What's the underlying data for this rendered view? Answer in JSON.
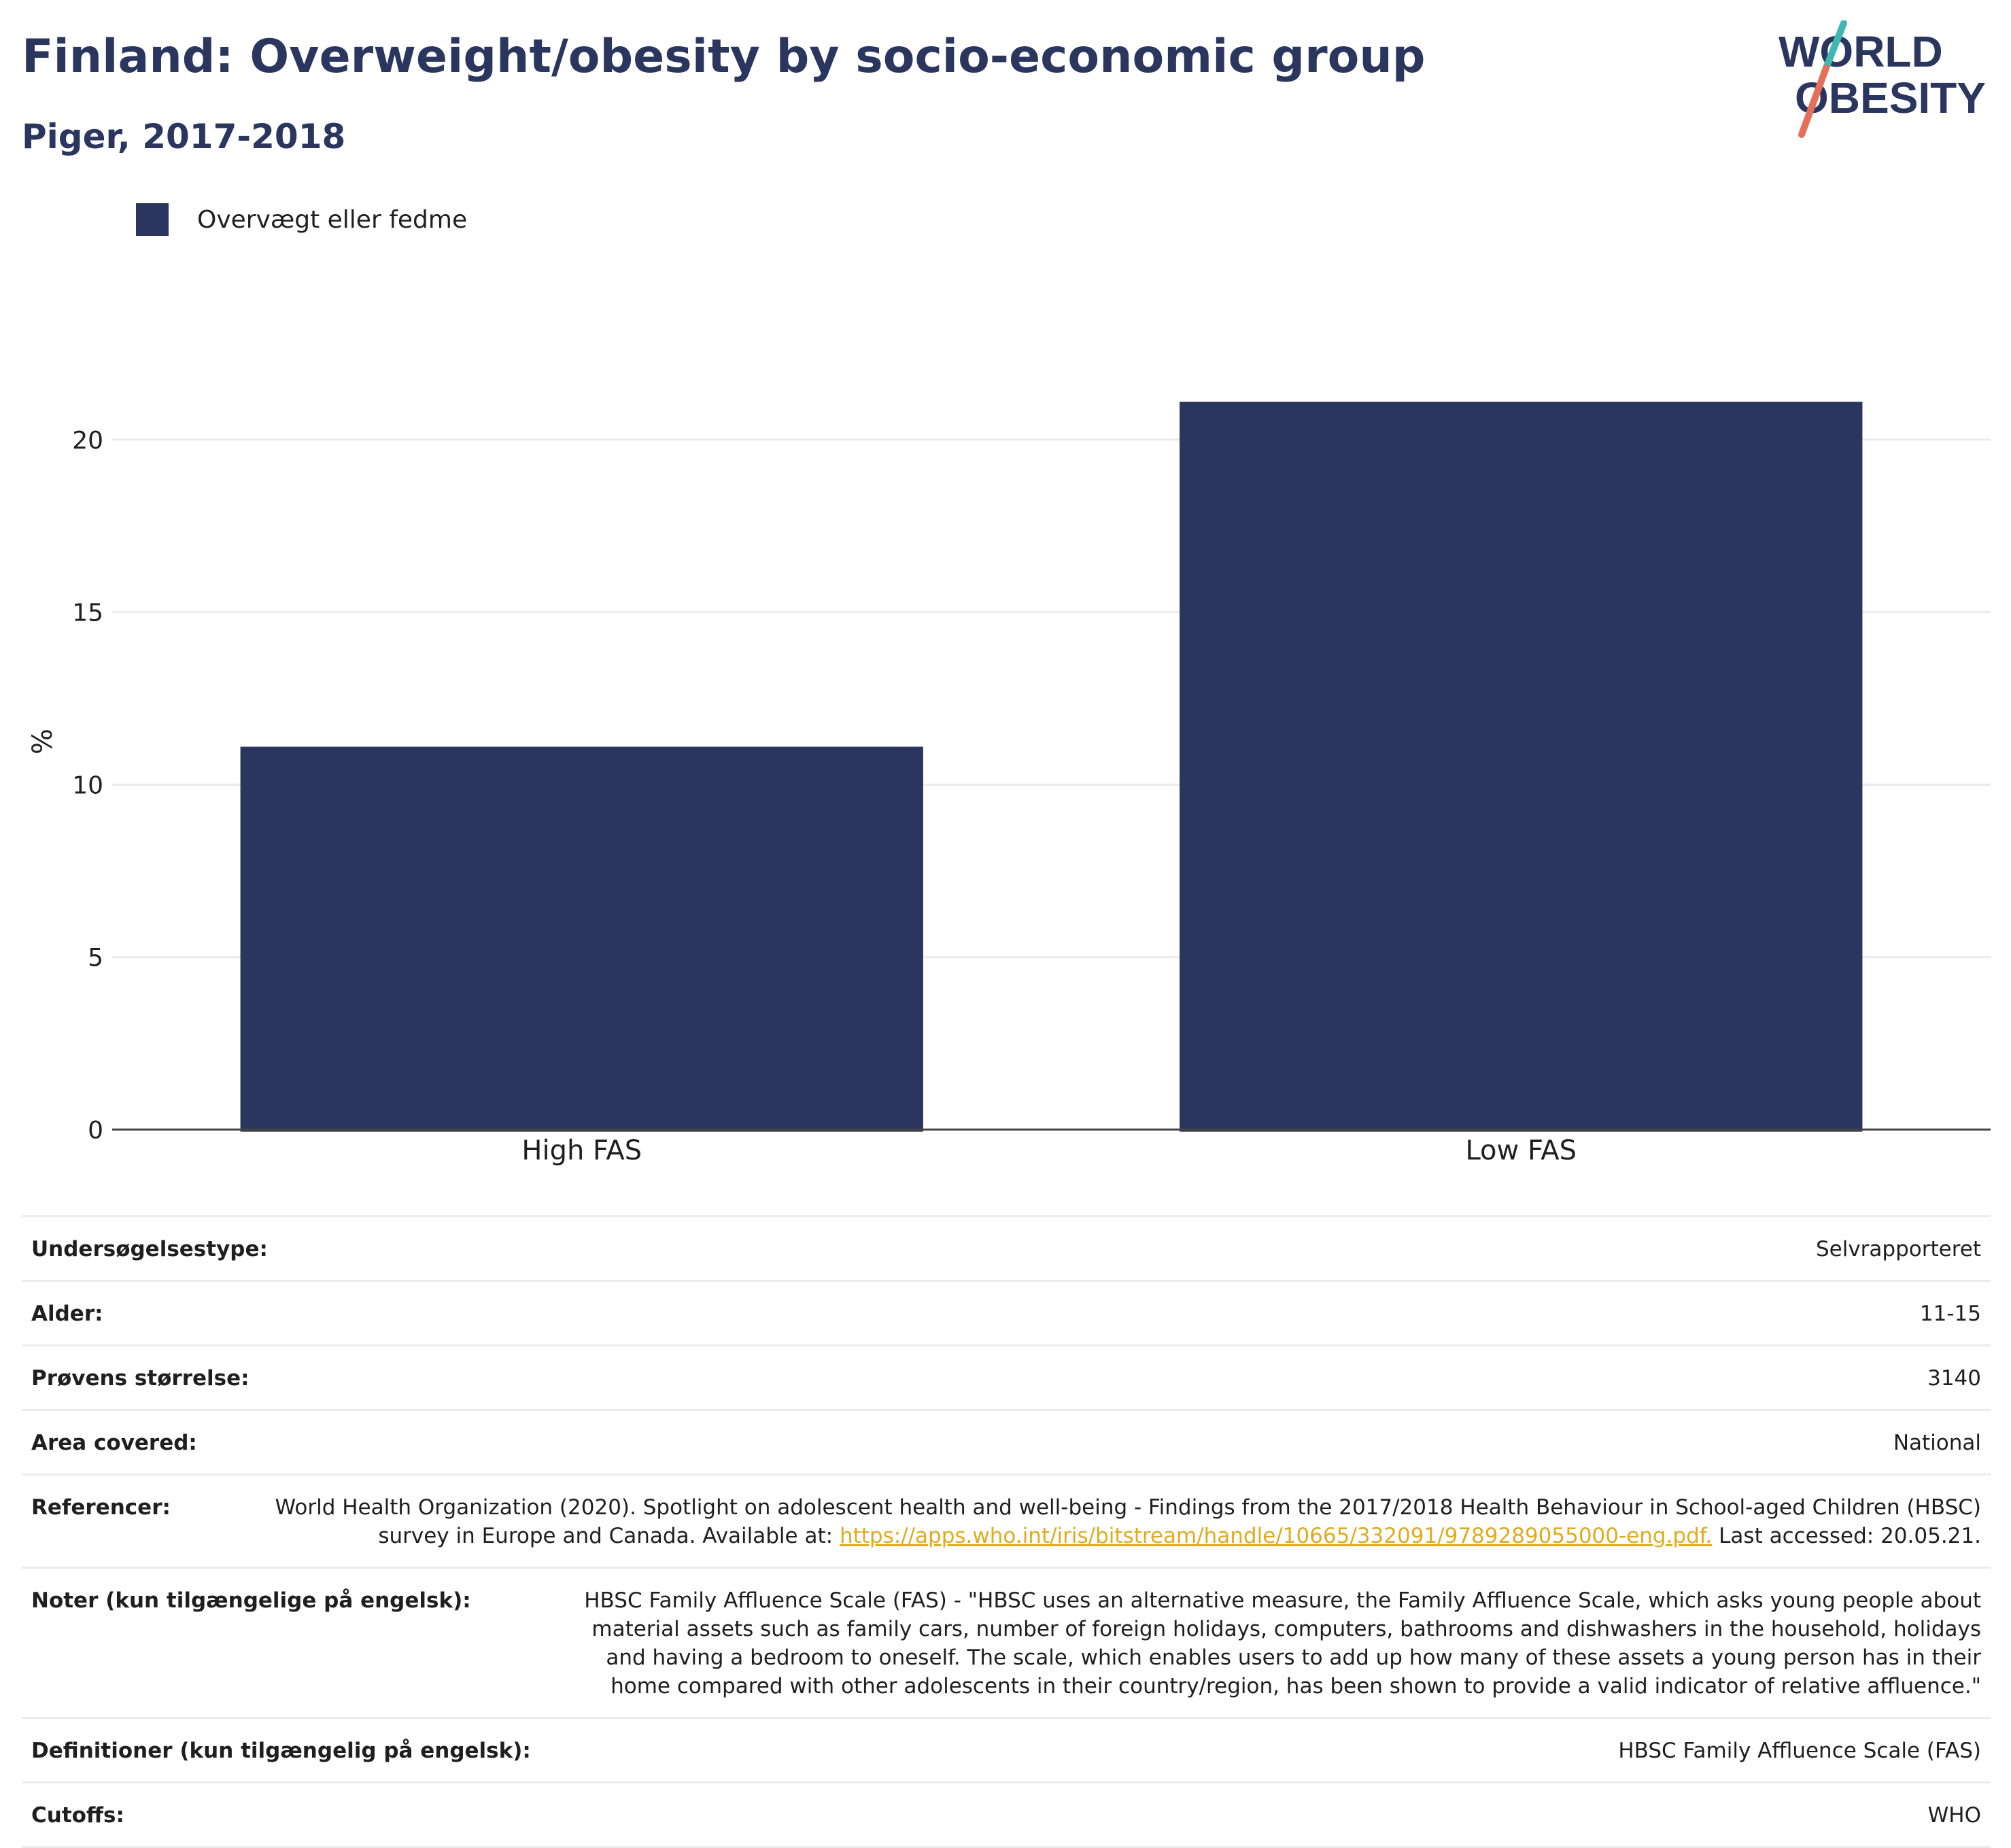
{
  "header": {
    "title": "Finland: Overweight/obesity by socio-economic group",
    "subtitle": "Piger, 2017-2018"
  },
  "logo": {
    "line1": "WORLD",
    "line2": "OBESITY",
    "colors": {
      "text": "#2b365f",
      "slash_top": "#3fb8b4",
      "slash_bottom": "#e5705a"
    }
  },
  "legend": {
    "label": "Overvægt eller fedme",
    "color": "#2b365f"
  },
  "chart_data": {
    "type": "bar",
    "categories": [
      "High FAS",
      "Low FAS"
    ],
    "series": [
      {
        "name": "Overvægt eller fedme",
        "values": [
          11.1,
          21.1
        ],
        "color": "#2b365f"
      }
    ],
    "title": "Finland: Overweight/obesity by socio-economic group",
    "subtitle": "Piger, 2017-2018",
    "xlabel": "",
    "ylabel": "%",
    "ylim": [
      0,
      22.5
    ],
    "yticks": [
      0,
      5,
      10,
      15,
      20
    ],
    "grid": true,
    "legend_position": "top-left"
  },
  "details": {
    "rows": [
      {
        "label": "Undersøgelsestype:",
        "value": "Selvrapporteret"
      },
      {
        "label": "Alder:",
        "value": "11-15"
      },
      {
        "label": "Prøvens størrelse:",
        "value": "3140"
      },
      {
        "label": "Area covered:",
        "value": "National"
      },
      {
        "label": "Referencer:",
        "value": "World Health Organization (2020). Spotlight on adolescent health and well-being - Findings from the 2017/2018 Health Behaviour in School-aged Children (HBSC) survey in Europe and Canada. Available at:",
        "link": "https://apps.who.int/iris/bitstream/handle/10665/332091/9789289055000-eng.pdf.",
        "suffix": " Last accessed: 20.05.21."
      },
      {
        "label": "Noter (kun tilgængelige på engelsk):",
        "value": "HBSC Family Affluence Scale (FAS) - \"HBSC uses an alternative measure, the Family Affluence Scale, which asks young people about material assets such as family cars, number of foreign holidays, computers, bathrooms and dishwashers in the household, holidays and having a bedroom to oneself. The scale, which enables users to add up how many of these assets a young person has in their home compared with other adolescents in their country/region, has been shown to provide a valid indicator of relative affluence.\""
      },
      {
        "label": "Definitioner (kun tilgængelig på engelsk):",
        "value": "HBSC Family Affluence Scale (FAS)"
      },
      {
        "label": "Cutoffs:",
        "value": "WHO"
      }
    ]
  }
}
